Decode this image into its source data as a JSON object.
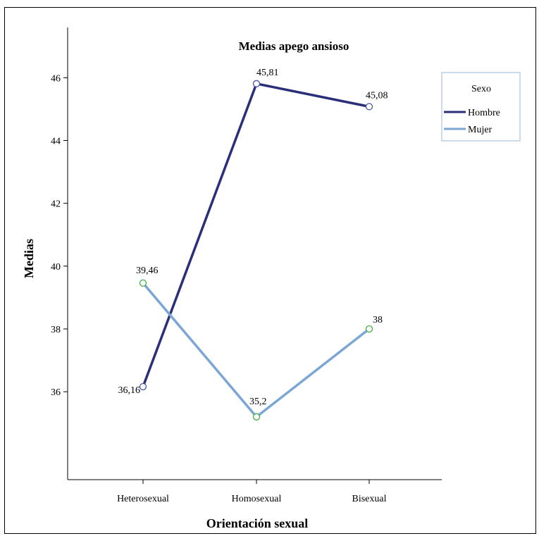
{
  "chart_data": {
    "type": "line",
    "title": "Medias apego ansioso",
    "xlabel": "Orientación sexual",
    "ylabel": "Medias",
    "categories": [
      "Heterosexual",
      "Homosexual",
      "Bisexual"
    ],
    "ylim": [
      33.2,
      47.6
    ],
    "yticks": [
      36,
      38,
      40,
      42,
      44,
      46
    ],
    "grid": false,
    "legend": {
      "title": "Sexo",
      "placement": "top-right"
    },
    "series": [
      {
        "name": "Hombre",
        "values": [
          36.16,
          45.81,
          45.08
        ],
        "labels": [
          "36,16",
          "45,81",
          "45,08"
        ],
        "color": "#2b2f7a",
        "marker_color": "#4a55a8"
      },
      {
        "name": "Mujer",
        "values": [
          39.46,
          35.2,
          38
        ],
        "labels": [
          "39,46",
          "35,2",
          "38"
        ],
        "color": "#7ba6d6",
        "marker_color": "#3cb043"
      }
    ]
  }
}
